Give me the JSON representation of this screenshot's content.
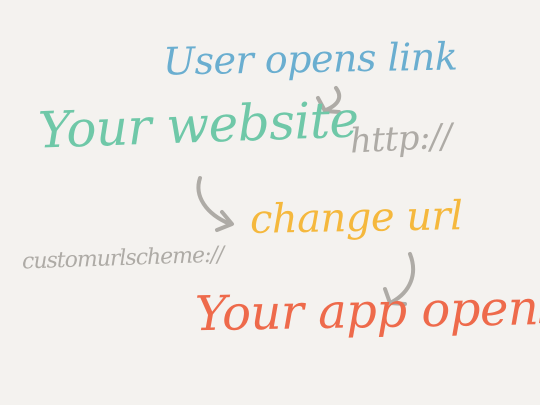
{
  "diagram": {
    "nodes": {
      "user_opens_link": "User opens link",
      "your_website": "Your website",
      "http": "http://",
      "change_url": "change url",
      "custom_scheme": "customurlscheme://",
      "your_app_opens": "Your app opens"
    },
    "colors": {
      "background": "#f4f2ef",
      "user_opens_link": "#6aaed0",
      "your_website": "#6fc8a8",
      "http": "#aeaba6",
      "change_url": "#f5b83d",
      "custom_scheme": "#aeaba6",
      "your_app_opens": "#ee6a4b",
      "arrows": "#aeaba6"
    },
    "arrows": [
      {
        "from": "user_opens_link",
        "to": "your_website"
      },
      {
        "from": "your_website",
        "to": "change_url"
      },
      {
        "from": "change_url",
        "to": "your_app_opens"
      }
    ]
  }
}
